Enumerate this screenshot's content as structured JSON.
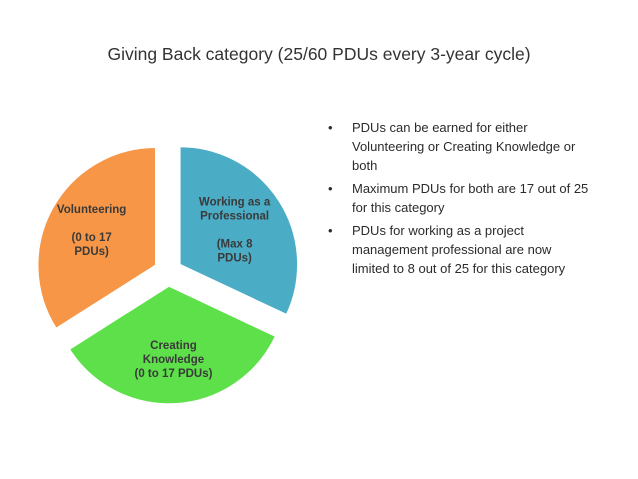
{
  "title": "Giving Back category (25/60 PDUs every 3-year cycle)",
  "chart_data": {
    "type": "pie",
    "exploded": true,
    "slices": [
      {
        "name": "Working as a Professional",
        "label_lines": [
          "Working as a",
          "Professional",
          "",
          "(Max 8",
          "PDUs)"
        ],
        "value": 8,
        "color": "#4bacc6"
      },
      {
        "name": "Creating Knowledge",
        "label_lines": [
          "Creating",
          "Knowledge",
          "(0 to 17 PDUs)"
        ],
        "value": 8.5,
        "color": "#5ee04a"
      },
      {
        "name": "Volunteering",
        "label_lines": [
          "Volunteering",
          "",
          "(0 to 17",
          "PDUs)"
        ],
        "value": 8.5,
        "color": "#f79646"
      }
    ]
  },
  "bullets": {
    "marker": "•",
    "items": [
      "PDUs can be earned for either Volunteering or Creating Knowledge or both",
      "Maximum PDUs for both are 17 out of 25 for this category",
      "PDUs for working as a project management professional are now limited to 8 out of 25 for this category"
    ]
  }
}
